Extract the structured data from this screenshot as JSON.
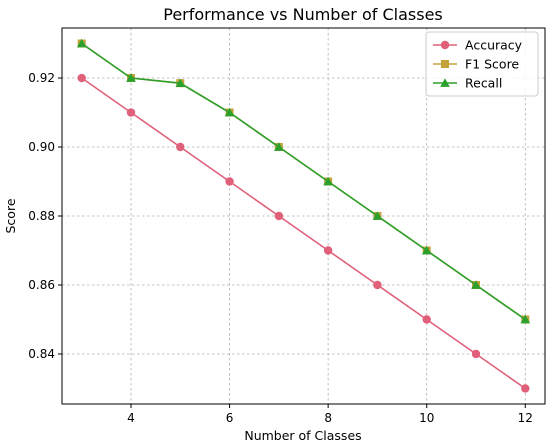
{
  "chart_data": {
    "type": "line",
    "title": "Performance vs Number of Classes",
    "xlabel": "Number of Classes",
    "ylabel": "Score",
    "xlim": [
      2.6,
      12.4
    ],
    "ylim": [
      0.8255,
      0.9345
    ],
    "xticks": [
      4,
      6,
      8,
      10,
      12
    ],
    "yticks": [
      0.84,
      0.86,
      0.88,
      0.9,
      0.92
    ],
    "ytick_labels": [
      "0.84",
      "0.86",
      "0.88",
      "0.90",
      "0.92"
    ],
    "grid": true,
    "legend_position": "top-right",
    "x": [
      3,
      4,
      5,
      6,
      7,
      8,
      9,
      10,
      11,
      12
    ],
    "series": [
      {
        "name": "Accuracy",
        "color": "#e0607a",
        "marker": "circle",
        "values": [
          0.92,
          0.91,
          0.9,
          0.89,
          0.88,
          0.87,
          0.86,
          0.85,
          0.84,
          0.83
        ]
      },
      {
        "name": "F1 Score",
        "color": "#c4a23a",
        "marker": "square",
        "values": [
          0.93,
          0.92,
          0.9185,
          0.91,
          0.9,
          0.89,
          0.88,
          0.87,
          0.86,
          0.85
        ]
      },
      {
        "name": "Recall",
        "color": "#2ca02c",
        "marker": "triangle",
        "values": [
          0.93,
          0.92,
          0.9185,
          0.91,
          0.9,
          0.89,
          0.88,
          0.87,
          0.86,
          0.85
        ]
      }
    ]
  }
}
